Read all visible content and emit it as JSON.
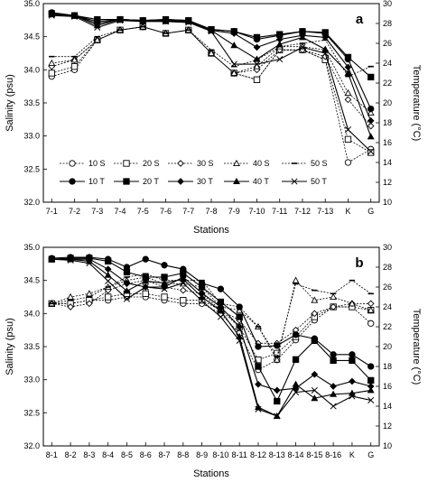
{
  "chart_data": [
    {
      "type": "line",
      "panel_label": "a",
      "xlabel": "Stations",
      "ylabel_left": "Salinity (psu)",
      "ylabel_right": "Temperature (°C)",
      "ylim_left": [
        32.0,
        35.0
      ],
      "ylim_right": [
        10,
        30
      ],
      "yticks_left": [
        "32.0",
        "32.5",
        "33.0",
        "33.5",
        "34.0",
        "34.5",
        "35.0"
      ],
      "yticks_right": [
        "10",
        "12",
        "14",
        "16",
        "18",
        "20",
        "22",
        "24",
        "26",
        "28",
        "30"
      ],
      "categories": [
        "7-1",
        "7-2",
        "7-3",
        "7-4",
        "7-5",
        "7-6",
        "7-7",
        "7-8",
        "7-9",
        "7-10",
        "7-11",
        "7-12",
        "7-13",
        "K",
        "G"
      ],
      "legend": {
        "placement": "bottom-left",
        "labels": [
          "10 S",
          "20 S",
          "30 S",
          "40 S",
          "50 S",
          "10 T",
          "20 T",
          "30 T",
          "40 T",
          "50 T"
        ]
      },
      "series": [
        {
          "name": "10 S",
          "axis": "left",
          "values": [
            33.9,
            34.0,
            34.45,
            34.6,
            34.65,
            34.55,
            34.6,
            34.25,
            33.95,
            33.85,
            34.3,
            34.3,
            34.15,
            32.6,
            32.8
          ]
        },
        {
          "name": "20 S",
          "axis": "left",
          "values": [
            33.95,
            34.05,
            34.45,
            34.6,
            34.65,
            34.55,
            34.6,
            34.25,
            33.95,
            33.85,
            34.3,
            34.3,
            34.15,
            32.95,
            32.75
          ]
        },
        {
          "name": "30 S",
          "axis": "left",
          "values": [
            34.05,
            34.15,
            34.45,
            34.6,
            34.65,
            34.55,
            34.6,
            34.25,
            33.95,
            34.0,
            34.3,
            34.3,
            34.2,
            33.55,
            33.15
          ]
        },
        {
          "name": "40 S",
          "axis": "left",
          "values": [
            34.1,
            34.15,
            34.45,
            34.6,
            34.65,
            34.55,
            34.6,
            34.25,
            33.95,
            34.05,
            34.35,
            34.35,
            34.3,
            33.65,
            33.35
          ]
        },
        {
          "name": "50 S",
          "axis": "left",
          "values": [
            34.2,
            34.2,
            34.5,
            34.6,
            34.65,
            34.55,
            34.6,
            34.3,
            34.05,
            34.15,
            34.35,
            34.4,
            34.45,
            33.9,
            34.05
          ]
        },
        {
          "name": "10 T",
          "axis": "right",
          "values": [
            29.1,
            28.8,
            28.2,
            28.4,
            28.3,
            28.4,
            28.3,
            27.4,
            27.2,
            26.4,
            26.8,
            27.2,
            27.0,
            24.4,
            19.4
          ]
        },
        {
          "name": "20 T",
          "axis": "right",
          "values": [
            29.0,
            28.8,
            28.4,
            28.4,
            28.3,
            28.4,
            28.3,
            27.4,
            27.2,
            26.6,
            26.9,
            27.2,
            27.1,
            24.6,
            22.6
          ]
        },
        {
          "name": "30 T",
          "axis": "right",
          "values": [
            29.0,
            28.8,
            28.0,
            28.4,
            28.3,
            28.3,
            28.2,
            27.3,
            27.0,
            25.6,
            26.4,
            26.8,
            26.6,
            23.6,
            18.2
          ]
        },
        {
          "name": "40 T",
          "axis": "right",
          "values": [
            28.9,
            28.8,
            27.8,
            28.4,
            28.3,
            28.2,
            28.2,
            27.3,
            25.8,
            24.4,
            25.9,
            26.6,
            25.4,
            23.0,
            16.6
          ]
        },
        {
          "name": "50 T",
          "axis": "right",
          "values": [
            28.8,
            28.7,
            27.6,
            28.3,
            28.2,
            28.2,
            28.1,
            27.2,
            23.9,
            23.9,
            24.4,
            25.6,
            25.0,
            17.3,
            15.1
          ]
        }
      ]
    },
    {
      "type": "line",
      "panel_label": "b",
      "xlabel": "Stations",
      "ylabel_left": "Salinity (psu)",
      "ylabel_right": "Temperature (°C)",
      "ylim_left": [
        32.0,
        35.0
      ],
      "ylim_right": [
        10,
        30
      ],
      "yticks_left": [
        "32.0",
        "32.5",
        "33.0",
        "33.5",
        "34.0",
        "34.5",
        "35.0"
      ],
      "yticks_right": [
        "10",
        "12",
        "14",
        "16",
        "18",
        "20",
        "22",
        "24",
        "26",
        "28",
        "30"
      ],
      "categories": [
        "8-1",
        "8-2",
        "8-3",
        "8-4",
        "8-5",
        "8-6",
        "8-7",
        "8-8",
        "8-9",
        "8-10",
        "8-11",
        "8-12",
        "8-13",
        "8-14",
        "8-15",
        "8-16",
        "K",
        "G"
      ],
      "series": [
        {
          "name": "10 S",
          "axis": "left",
          "values": [
            34.15,
            34.15,
            34.2,
            34.2,
            34.25,
            34.25,
            34.2,
            34.15,
            34.15,
            34.0,
            33.7,
            33.15,
            33.3,
            33.6,
            33.9,
            34.1,
            34.1,
            33.85
          ]
        },
        {
          "name": "20 S",
          "axis": "left",
          "values": [
            34.15,
            34.15,
            34.2,
            34.25,
            34.3,
            34.3,
            34.25,
            34.2,
            34.2,
            34.05,
            33.8,
            33.3,
            33.4,
            33.65,
            33.95,
            34.1,
            34.1,
            34.05
          ]
        },
        {
          "name": "30 S",
          "axis": "left",
          "values": [
            34.15,
            34.1,
            34.15,
            34.35,
            34.45,
            34.5,
            34.4,
            34.35,
            34.3,
            34.05,
            33.9,
            33.55,
            33.55,
            33.75,
            34.0,
            34.1,
            34.15,
            34.15
          ]
        },
        {
          "name": "40 S",
          "axis": "left",
          "values": [
            34.15,
            34.25,
            34.3,
            34.4,
            34.5,
            34.55,
            34.45,
            34.45,
            34.4,
            34.1,
            34.05,
            33.8,
            33.3,
            34.5,
            34.2,
            34.25,
            34.15,
            34.05
          ]
        },
        {
          "name": "50 S",
          "axis": "left",
          "values": [
            34.15,
            34.2,
            34.25,
            34.4,
            34.55,
            34.6,
            34.5,
            34.5,
            34.5,
            34.15,
            34.1,
            33.8,
            33.35,
            34.45,
            34.35,
            34.3,
            34.5,
            34.3
          ]
        },
        {
          "name": "10 T",
          "axis": "right",
          "values": [
            28.9,
            29.0,
            29.0,
            28.8,
            28.0,
            28.8,
            28.2,
            27.8,
            26.4,
            25.8,
            24.0,
            20.0,
            20.1,
            21.2,
            20.8,
            19.2,
            19.2,
            18.0
          ]
        },
        {
          "name": "20 T",
          "axis": "right",
          "values": [
            28.8,
            28.9,
            28.9,
            28.6,
            27.5,
            27.0,
            27.0,
            27.4,
            26.0,
            24.5,
            23.0,
            18.0,
            14.5,
            18.7,
            20.6,
            18.6,
            18.6,
            16.6
          ]
        },
        {
          "name": "30 T",
          "axis": "right",
          "values": [
            28.8,
            28.8,
            28.8,
            27.8,
            26.4,
            26.0,
            26.0,
            27.0,
            25.4,
            24.0,
            22.0,
            16.2,
            15.6,
            15.8,
            17.2,
            16.0,
            16.5,
            16.0
          ]
        },
        {
          "name": "40 T",
          "axis": "right",
          "values": [
            28.8,
            28.8,
            28.6,
            27.2,
            25.6,
            26.6,
            26.4,
            26.8,
            25.0,
            23.6,
            21.0,
            13.9,
            13.0,
            16.2,
            14.8,
            15.2,
            15.3,
            15.6
          ]
        },
        {
          "name": "50 T",
          "axis": "right",
          "values": [
            28.8,
            28.7,
            28.4,
            26.6,
            24.8,
            26.0,
            25.8,
            26.4,
            24.6,
            23.0,
            20.6,
            13.7,
            13.0,
            15.4,
            15.6,
            14.0,
            15.0,
            14.6
          ]
        }
      ]
    }
  ]
}
